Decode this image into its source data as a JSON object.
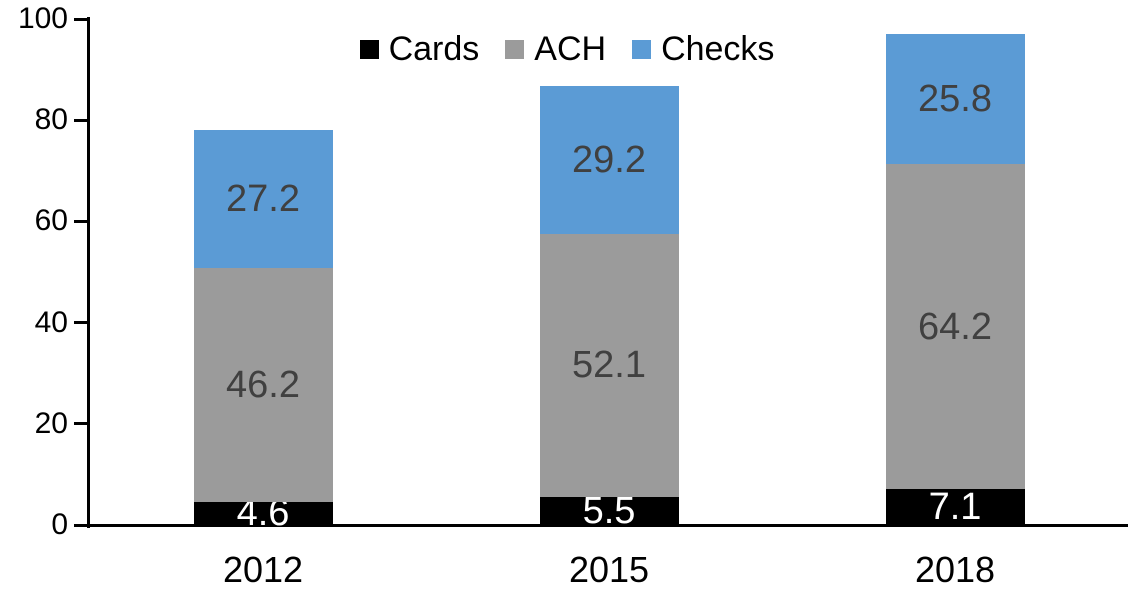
{
  "chart_data": {
    "type": "bar",
    "stacked": true,
    "title": "",
    "categories": [
      "2012",
      "2015",
      "2018"
    ],
    "series": [
      {
        "name": "Cards",
        "values": [
          4.6,
          5.5,
          7.1
        ],
        "color": "#000000",
        "label_color": "#FFFFFF"
      },
      {
        "name": "ACH",
        "values": [
          46.2,
          52.1,
          64.2
        ],
        "color": "#9B9B9B",
        "label_color": "#404040"
      },
      {
        "name": "Checks",
        "values": [
          27.2,
          29.2,
          25.8
        ],
        "color": "#5B9BD5",
        "label_color": "#404040"
      }
    ],
    "totals": [
      78.0,
      86.8,
      97.1
    ],
    "xlabel": "",
    "ylabel": "",
    "ylim": [
      0,
      100
    ],
    "yticks": [
      0,
      20,
      40,
      60,
      80,
      100
    ],
    "grid": false,
    "legend": {
      "position": "top-center",
      "labels": [
        "Cards",
        "ACH",
        "Checks"
      ]
    },
    "axis_color": "#000000",
    "background": "#FFFFFF"
  }
}
